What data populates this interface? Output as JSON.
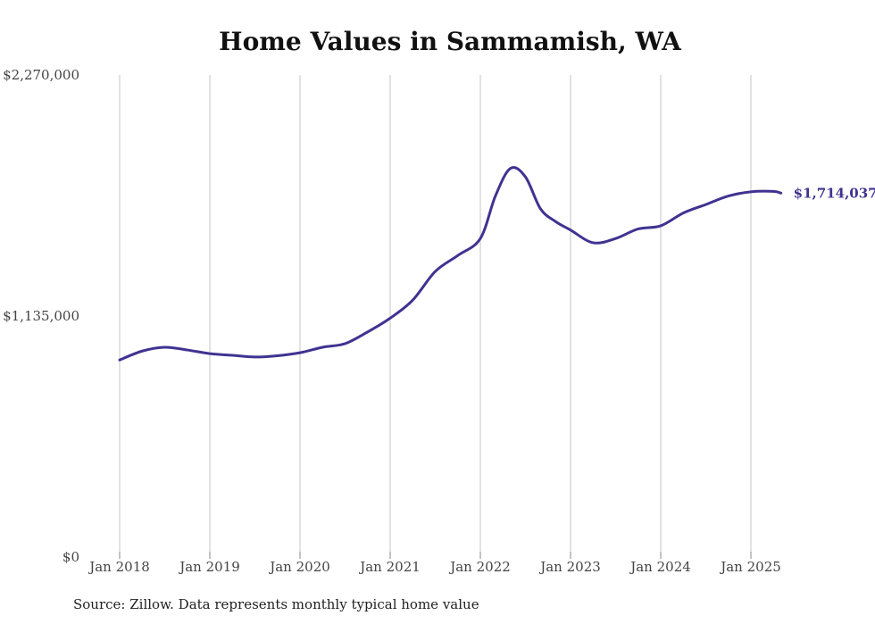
{
  "chart_data": {
    "type": "line",
    "title": "Home Values in Sammamish, WA",
    "xlabel": "",
    "ylabel": "",
    "ylim": [
      0,
      2270000
    ],
    "y_ticks": [
      {
        "value": 0,
        "label": "$0"
      },
      {
        "value": 1135000,
        "label": "$1,135,000"
      },
      {
        "value": 2270000,
        "label": "$2,270,000"
      }
    ],
    "x_ticks": [
      {
        "value": "2018-01",
        "label": "Jan 2018"
      },
      {
        "value": "2019-01",
        "label": "Jan 2019"
      },
      {
        "value": "2020-01",
        "label": "Jan 2020"
      },
      {
        "value": "2021-01",
        "label": "Jan 2021"
      },
      {
        "value": "2022-01",
        "label": "Jan 2022"
      },
      {
        "value": "2023-01",
        "label": "Jan 2023"
      },
      {
        "value": "2024-01",
        "label": "Jan 2024"
      },
      {
        "value": "2025-01",
        "label": "Jan 2025"
      }
    ],
    "grid": "vertical",
    "line_color": "#3f3391",
    "series": [
      {
        "values": [
          {
            "x": "2018-01",
            "y": 928000
          },
          {
            "x": "2018-04",
            "y": 970000
          },
          {
            "x": "2018-07",
            "y": 988000
          },
          {
            "x": "2018-10",
            "y": 975000
          },
          {
            "x": "2019-01",
            "y": 958000
          },
          {
            "x": "2019-04",
            "y": 950000
          },
          {
            "x": "2019-07",
            "y": 942000
          },
          {
            "x": "2019-10",
            "y": 948000
          },
          {
            "x": "2020-01",
            "y": 962000
          },
          {
            "x": "2020-04",
            "y": 988000
          },
          {
            "x": "2020-07",
            "y": 1005000
          },
          {
            "x": "2020-10",
            "y": 1060000
          },
          {
            "x": "2021-01",
            "y": 1125000
          },
          {
            "x": "2021-04",
            "y": 1210000
          },
          {
            "x": "2021-07",
            "y": 1345000
          },
          {
            "x": "2021-10",
            "y": 1420000
          },
          {
            "x": "2022-01",
            "y": 1500000
          },
          {
            "x": "2022-03",
            "y": 1700000
          },
          {
            "x": "2022-05",
            "y": 1830000
          },
          {
            "x": "2022-07",
            "y": 1790000
          },
          {
            "x": "2022-09",
            "y": 1640000
          },
          {
            "x": "2022-11",
            "y": 1580000
          },
          {
            "x": "2023-01",
            "y": 1540000
          },
          {
            "x": "2023-04",
            "y": 1480000
          },
          {
            "x": "2023-07",
            "y": 1500000
          },
          {
            "x": "2023-10",
            "y": 1545000
          },
          {
            "x": "2024-01",
            "y": 1560000
          },
          {
            "x": "2024-04",
            "y": 1620000
          },
          {
            "x": "2024-07",
            "y": 1660000
          },
          {
            "x": "2024-10",
            "y": 1700000
          },
          {
            "x": "2025-01",
            "y": 1720000
          },
          {
            "x": "2025-04",
            "y": 1722000
          },
          {
            "x": "2025-05",
            "y": 1714037
          }
        ]
      }
    ],
    "end_label": "$1,714,037"
  },
  "source_note": "Source: Zillow. Data represents monthly typical home value"
}
